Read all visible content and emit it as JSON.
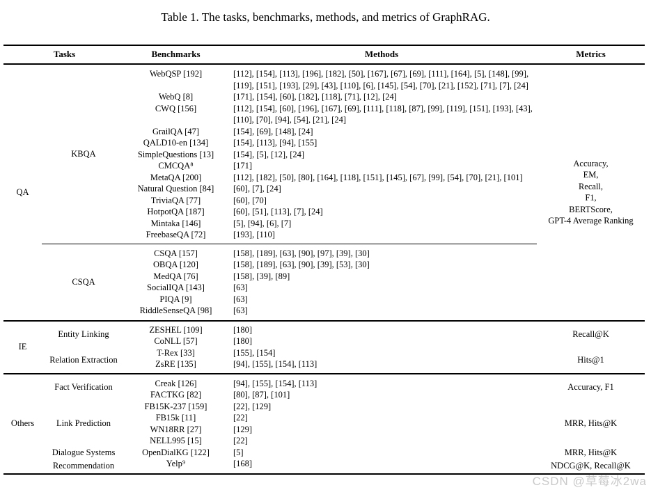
{
  "caption": "Table 1.  The tasks, benchmarks, methods, and metrics of GraphRAG.",
  "watermark": "CSDN @草莓冰2wa",
  "header": {
    "tasks": "Tasks",
    "benchmarks": "Benchmarks",
    "methods": "Methods",
    "metrics": "Metrics"
  },
  "qa": {
    "group": "QA",
    "metrics": "Accuracy,\nEM,\nRecall,\nF1,\nBERTScore,\nGPT-4 Average Ranking",
    "kbqa": {
      "label": "KBQA",
      "rows": [
        {
          "benchmark": "WebQSP [192]",
          "methods": "[112], [154], [113], [196], [182], [50], [167], [67], [69], [111], [164], [5], [148], [99], [119], [151], [193], [29], [43], [110], [6], [145], [54], [70], [21], [152], [71], [7], [24]"
        },
        {
          "benchmark": "WebQ [8]",
          "methods": "[171], [154], [60], [182], [118], [71], [12], [24]"
        },
        {
          "benchmark": "CWQ [156]",
          "methods": "[112], [154], [60], [196], [167], [69], [111], [118], [87], [99], [119], [151], [193], [43], [110], [70], [94], [54], [21], [24]"
        },
        {
          "benchmark": "GrailQA [47]",
          "methods": "[154], [69], [148], [24]"
        },
        {
          "benchmark": "QALD10-en [134]",
          "methods": "[154], [113], [94], [155]"
        },
        {
          "benchmark": "SimpleQuestions [13]",
          "methods": "[154], [5], [12], [24]"
        },
        {
          "benchmark": "CMCQA⁸",
          "methods": "[171]"
        },
        {
          "benchmark": "MetaQA [200]",
          "methods": "[112], [182], [50], [80], [164], [118], [151], [145], [67], [99], [54], [70], [21], [101]"
        },
        {
          "benchmark": "Natural Question [84]",
          "methods": "[60], [7], [24]"
        },
        {
          "benchmark": "TriviaQA [77]",
          "methods": "[60], [70]"
        },
        {
          "benchmark": "HotpotQA [187]",
          "methods": "[60], [51], [113], [7], [24]"
        },
        {
          "benchmark": "Mintaka [146]",
          "methods": "[5], [94], [6], [7]"
        },
        {
          "benchmark": "FreebaseQA [72]",
          "methods": "[193], [110]"
        }
      ]
    },
    "csqa": {
      "label": "CSQA",
      "rows": [
        {
          "benchmark": "CSQA [157]",
          "methods": "[158], [189], [63], [90], [97], [39], [30]"
        },
        {
          "benchmark": "OBQA [120]",
          "methods": "[158], [189], [63], [90], [39], [53], [30]"
        },
        {
          "benchmark": "MedQA [76]",
          "methods": "[158], [39], [89]"
        },
        {
          "benchmark": "SocialIQA [143]",
          "methods": "[63]"
        },
        {
          "benchmark": "PIQA [9]",
          "methods": "[63]"
        },
        {
          "benchmark": "RiddleSenseQA [98]",
          "methods": "[63]"
        }
      ]
    }
  },
  "ie": {
    "group": "IE",
    "subs": [
      {
        "label": "Entity Linking",
        "metric": "Recall@K",
        "rows": [
          {
            "benchmark": "ZESHEL [109]",
            "methods": "[180]"
          },
          {
            "benchmark": "CoNLL [57]",
            "methods": "[180]"
          }
        ]
      },
      {
        "label": "Relation Extraction",
        "metric": "Hits@1",
        "rows": [
          {
            "benchmark": "T-Rex [33]",
            "methods": "[155], [154]"
          },
          {
            "benchmark": "ZsRE [135]",
            "methods": "[94], [155], [154], [113]"
          }
        ]
      }
    ]
  },
  "others": {
    "group": "Others",
    "subs": [
      {
        "label": "Fact Verification",
        "metric": "Accuracy, F1",
        "rows": [
          {
            "benchmark": "Creak [126]",
            "methods": "[94], [155], [154], [113]"
          },
          {
            "benchmark": "FACTKG [82]",
            "methods": "[80], [87], [101]"
          }
        ]
      },
      {
        "label": "Link Prediction",
        "metric": "MRR, Hits@K",
        "rows": [
          {
            "benchmark": "FB15K-237 [159]",
            "methods": "[22], [129]"
          },
          {
            "benchmark": "FB15k [11]",
            "methods": "[22]"
          },
          {
            "benchmark": "WN18RR [27]",
            "methods": "[129]"
          },
          {
            "benchmark": "NELL995 [15]",
            "methods": "[22]"
          }
        ]
      },
      {
        "label": "Dialogue Systems",
        "metric": "MRR, Hits@K",
        "rows": [
          {
            "benchmark": "OpenDialKG [122]",
            "methods": "[5]"
          }
        ]
      },
      {
        "label": "Recommendation",
        "metric": "NDCG@K, Recall@K",
        "rows": [
          {
            "benchmark": "Yelp⁹",
            "methods": "[168]"
          }
        ]
      }
    ]
  }
}
